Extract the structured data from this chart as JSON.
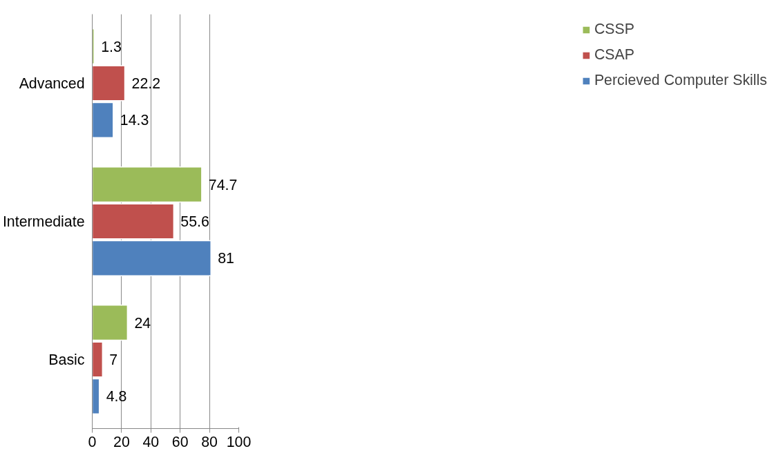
{
  "chart_data": {
    "type": "bar",
    "orientation": "horizontal",
    "categories": [
      "Advanced",
      "Intermediate",
      "Basic"
    ],
    "series": [
      {
        "name": "CSSP",
        "color": "#9bbb59",
        "values": [
          1.3,
          74.7,
          24
        ]
      },
      {
        "name": "CSAP",
        "color": "#c0504d",
        "values": [
          22.2,
          55.6,
          7
        ]
      },
      {
        "name": "Percieved Computer Skills",
        "color": "#4f81bd",
        "values": [
          14.3,
          81,
          4.8
        ]
      }
    ],
    "xlim": [
      0,
      100
    ],
    "xticks": [
      0,
      20,
      40,
      60,
      80,
      100
    ],
    "grid": "x",
    "legend": "right",
    "data_labels": true
  }
}
